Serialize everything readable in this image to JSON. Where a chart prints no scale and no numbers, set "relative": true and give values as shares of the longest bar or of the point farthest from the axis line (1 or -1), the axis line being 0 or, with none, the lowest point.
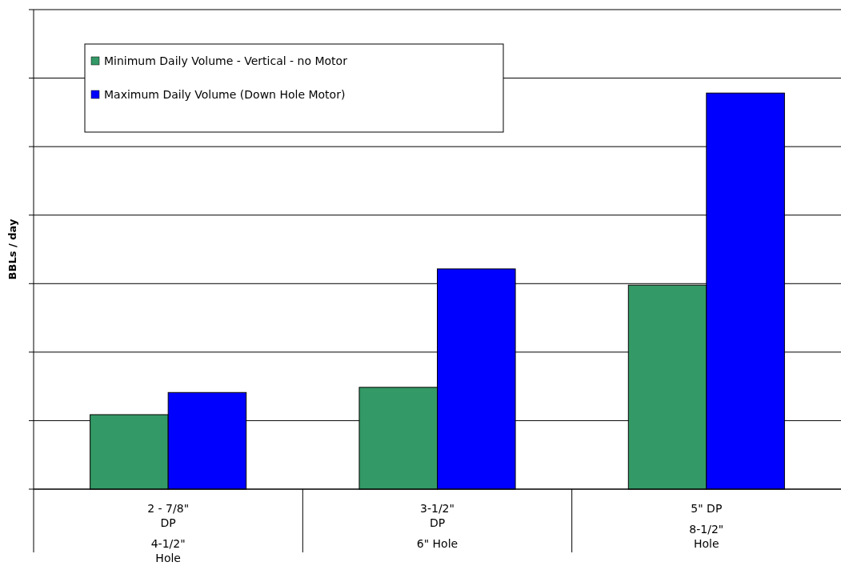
{
  "chart_data": {
    "type": "bar",
    "ylabel": "BBLs / day",
    "relative": true,
    "grid": "y",
    "legend": "top left",
    "categories": [
      "2 - 7/8\" DP\n4-1/2\" Hole",
      "3-1/2\" DP\n6\" Hole",
      "5\" DP\n8-1/2\" Hole"
    ],
    "series": [
      {
        "name": "Minimum Daily Volume - Vertical - no Motor",
        "color": "#339966",
        "values": [
          0.188,
          0.257,
          0.515
        ]
      },
      {
        "name": "Maximum Daily Volume (Down Hole Motor)",
        "color": "#0000ff",
        "values": [
          0.244,
          0.556,
          1
        ]
      }
    ]
  }
}
